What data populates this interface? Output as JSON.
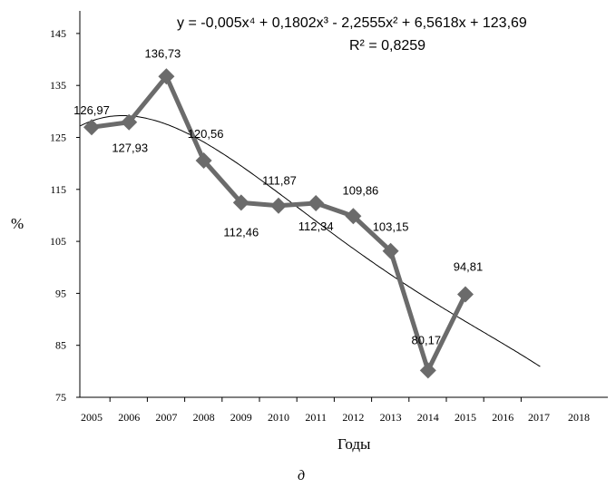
{
  "chart_data": {
    "type": "line",
    "equation": "y = -0,005x⁴ + 0,1802x³ - 2,2555x² + 6,5618x + 123,69",
    "r_squared": "R² = 0,8259",
    "xlabel": "Годы",
    "ylabel": "%",
    "caption": "д",
    "ylim": [
      75,
      150
    ],
    "yticks": [
      "75",
      "85",
      "95",
      "105",
      "115",
      "125",
      "135",
      "145"
    ],
    "xticks": [
      "2005",
      "2006",
      "2007",
      "2008",
      "2009",
      "2010",
      "2011",
      "2012",
      "2013",
      "2014",
      "2015",
      "2016",
      "2017",
      "2018"
    ],
    "series": [
      {
        "x": [
          2005,
          2006,
          2007,
          2008,
          2009,
          2010,
          2011,
          2012,
          2013,
          2014,
          2015
        ],
        "values": [
          126.97,
          127.93,
          136.73,
          120.56,
          112.46,
          111.87,
          112.34,
          109.86,
          103.15,
          80.17,
          94.81
        ],
        "labels": [
          "126,97",
          "127,93",
          "136,73",
          "120,56",
          "112,46",
          "111,87",
          "112,34",
          "109,86",
          "103,15",
          "80,17",
          "94,81"
        ],
        "color": "#6b6b6b",
        "marker": "diamond"
      }
    ],
    "trendline": {
      "type": "polynomial",
      "degree": 4,
      "coefficients": [
        -0.005,
        0.1802,
        -2.2555,
        6.5618,
        123.69
      ],
      "x_index_start": 1,
      "color": "#000000"
    },
    "grid": false
  }
}
